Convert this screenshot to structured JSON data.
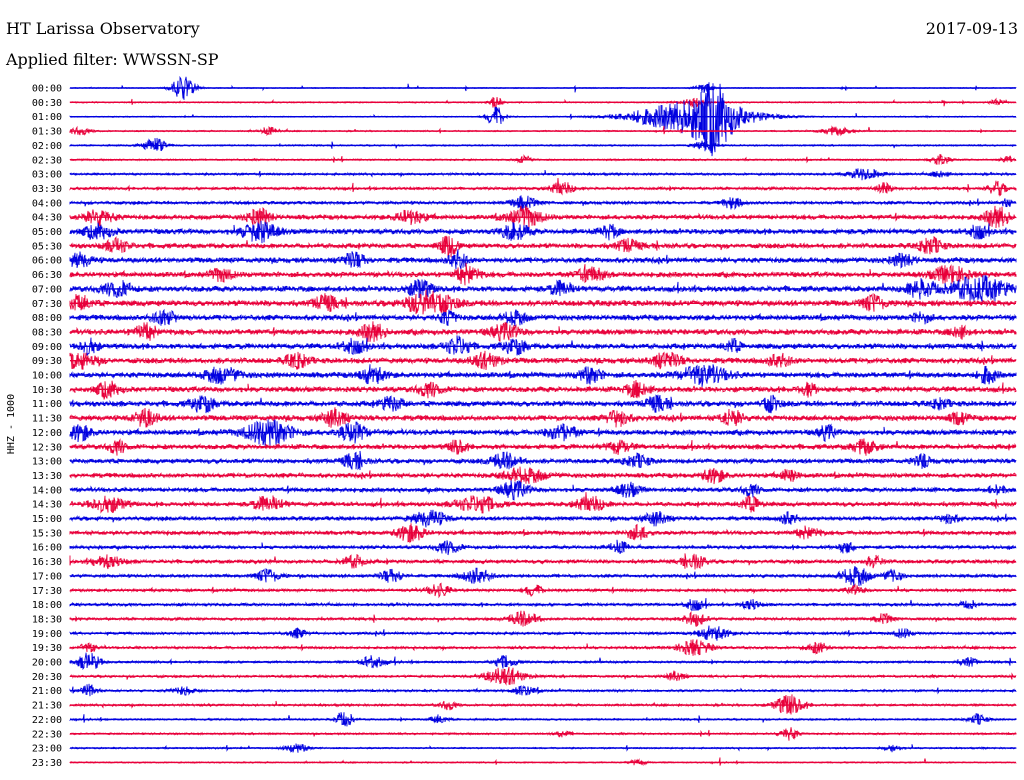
{
  "header": {
    "title": "HT Larissa Observatory",
    "filter": "Applied filter: WWSSN-SP",
    "date": "2017-09-13"
  },
  "colors": {
    "background": "#ffffff",
    "trace_even": "#0000e0",
    "trace_odd": "#e8003a",
    "text": "#000000"
  },
  "chart_data": {
    "type": "line",
    "title": "HT Larissa Observatory",
    "subtitle": "Applied filter: WWSSN-SP",
    "date": "2017-09-13",
    "ylabel": "HHZ - 1000",
    "xlabel": "",
    "grid": false,
    "rows": [
      {
        "label": "00:00",
        "color": "#0000e0",
        "noise": 0.05,
        "events": [
          [
            0.12,
            1.6,
            8
          ],
          [
            0.67,
            0.6,
            6
          ]
        ]
      },
      {
        "label": "00:30",
        "color": "#e8003a",
        "noise": 0.07,
        "events": [
          [
            0.45,
            0.9,
            4
          ],
          [
            0.66,
            0.5,
            10
          ],
          [
            0.98,
            0.4,
            5
          ]
        ]
      },
      {
        "label": "01:00",
        "color": "#0000e0",
        "noise": 0.06,
        "events": [
          [
            0.45,
            1.4,
            6
          ],
          [
            0.66,
            2.2,
            40
          ],
          [
            0.68,
            3.2,
            12
          ]
        ]
      },
      {
        "label": "01:30",
        "color": "#e8003a",
        "noise": 0.07,
        "events": [
          [
            0.01,
            0.5,
            8
          ],
          [
            0.21,
            0.5,
            6
          ],
          [
            0.81,
            0.6,
            10
          ]
        ]
      },
      {
        "label": "02:00",
        "color": "#0000e0",
        "noise": 0.08,
        "events": [
          [
            0.09,
            1.0,
            8
          ],
          [
            0.67,
            0.6,
            8
          ]
        ]
      },
      {
        "label": "02:30",
        "color": "#e8003a",
        "noise": 0.09,
        "events": [
          [
            0.48,
            0.7,
            4
          ],
          [
            0.92,
            0.8,
            6
          ],
          [
            0.99,
            0.5,
            4
          ]
        ]
      },
      {
        "label": "03:00",
        "color": "#0000e0",
        "noise": 0.12,
        "events": [
          [
            0.84,
            0.9,
            10
          ],
          [
            0.92,
            0.5,
            6
          ]
        ]
      },
      {
        "label": "03:30",
        "color": "#e8003a",
        "noise": 0.15,
        "events": [
          [
            0.52,
            0.9,
            8
          ],
          [
            0.86,
            0.7,
            6
          ],
          [
            0.98,
            0.9,
            6
          ]
        ]
      },
      {
        "label": "04:00",
        "color": "#0000e0",
        "noise": 0.18,
        "events": [
          [
            0.48,
            0.9,
            8
          ],
          [
            0.7,
            0.8,
            6
          ],
          [
            0.99,
            0.5,
            4
          ]
        ]
      },
      {
        "label": "04:30",
        "color": "#e8003a",
        "noise": 0.28,
        "events": [
          [
            0.03,
            1.0,
            10
          ],
          [
            0.2,
            1.2,
            8
          ],
          [
            0.36,
            0.9,
            10
          ],
          [
            0.48,
            1.3,
            12
          ],
          [
            0.98,
            1.4,
            8
          ]
        ]
      },
      {
        "label": "05:00",
        "color": "#0000e0",
        "noise": 0.32,
        "events": [
          [
            0.03,
            0.9,
            10
          ],
          [
            0.2,
            1.3,
            12
          ],
          [
            0.47,
            1.0,
            10
          ],
          [
            0.57,
            0.9,
            6
          ],
          [
            0.96,
            0.9,
            6
          ]
        ]
      },
      {
        "label": "05:30",
        "color": "#e8003a",
        "noise": 0.3,
        "events": [
          [
            0.05,
            0.9,
            8
          ],
          [
            0.4,
            1.4,
            6
          ],
          [
            0.59,
            0.8,
            8
          ],
          [
            0.91,
            1.0,
            8
          ]
        ]
      },
      {
        "label": "06:00",
        "color": "#0000e0",
        "noise": 0.32,
        "events": [
          [
            0.01,
            0.9,
            8
          ],
          [
            0.3,
            0.9,
            8
          ],
          [
            0.41,
            1.2,
            6
          ],
          [
            0.88,
            0.8,
            8
          ]
        ]
      },
      {
        "label": "06:30",
        "color": "#e8003a",
        "noise": 0.32,
        "events": [
          [
            0.16,
            0.8,
            8
          ],
          [
            0.42,
            1.3,
            8
          ],
          [
            0.55,
            0.9,
            10
          ],
          [
            0.93,
            1.1,
            12
          ]
        ]
      },
      {
        "label": "07:00",
        "color": "#0000e0",
        "noise": 0.35,
        "events": [
          [
            0.05,
            1.0,
            10
          ],
          [
            0.37,
            1.2,
            8
          ],
          [
            0.52,
            0.9,
            8
          ],
          [
            0.9,
            1.2,
            10
          ],
          [
            0.96,
            1.6,
            20
          ]
        ]
      },
      {
        "label": "07:30",
        "color": "#e8003a",
        "noise": 0.35,
        "events": [
          [
            0.01,
            1.0,
            8
          ],
          [
            0.27,
            1.0,
            8
          ],
          [
            0.38,
            1.6,
            16
          ],
          [
            0.85,
            1.0,
            8
          ]
        ]
      },
      {
        "label": "08:00",
        "color": "#0000e0",
        "noise": 0.33,
        "events": [
          [
            0.1,
            1.0,
            8
          ],
          [
            0.4,
            0.9,
            6
          ],
          [
            0.47,
            0.9,
            8
          ],
          [
            0.9,
            0.7,
            6
          ]
        ]
      },
      {
        "label": "08:30",
        "color": "#e8003a",
        "noise": 0.34,
        "events": [
          [
            0.08,
            1.0,
            8
          ],
          [
            0.32,
            1.2,
            8
          ],
          [
            0.46,
            1.0,
            10
          ],
          [
            0.94,
            0.8,
            6
          ]
        ]
      },
      {
        "label": "09:00",
        "color": "#0000e0",
        "noise": 0.33,
        "events": [
          [
            0.02,
            1.0,
            6
          ],
          [
            0.3,
            0.9,
            8
          ],
          [
            0.41,
            1.3,
            8
          ],
          [
            0.47,
            1.0,
            8
          ],
          [
            0.7,
            0.8,
            6
          ]
        ]
      },
      {
        "label": "09:30",
        "color": "#e8003a",
        "noise": 0.33,
        "events": [
          [
            0.01,
            1.0,
            12
          ],
          [
            0.24,
            0.9,
            8
          ],
          [
            0.44,
            1.0,
            10
          ],
          [
            0.63,
            1.0,
            10
          ],
          [
            0.75,
            0.8,
            8
          ]
        ]
      },
      {
        "label": "10:00",
        "color": "#0000e0",
        "noise": 0.33,
        "events": [
          [
            0.16,
            1.0,
            12
          ],
          [
            0.32,
            1.2,
            8
          ],
          [
            0.55,
            1.0,
            8
          ],
          [
            0.67,
            1.3,
            16
          ],
          [
            0.97,
            1.1,
            6
          ]
        ]
      },
      {
        "label": "10:30",
        "color": "#e8003a",
        "noise": 0.33,
        "events": [
          [
            0.04,
            1.0,
            8
          ],
          [
            0.38,
            0.9,
            8
          ],
          [
            0.6,
            1.0,
            8
          ],
          [
            0.78,
            0.8,
            6
          ]
        ]
      },
      {
        "label": "11:00",
        "color": "#0000e0",
        "noise": 0.33,
        "events": [
          [
            0.14,
            1.1,
            8
          ],
          [
            0.34,
            0.9,
            8
          ],
          [
            0.62,
            0.9,
            8
          ],
          [
            0.74,
            1.0,
            6
          ],
          [
            0.92,
            0.6,
            6
          ]
        ]
      },
      {
        "label": "11:30",
        "color": "#e8003a",
        "noise": 0.33,
        "events": [
          [
            0.08,
            1.1,
            8
          ],
          [
            0.28,
            1.2,
            8
          ],
          [
            0.58,
            1.0,
            8
          ],
          [
            0.7,
            1.0,
            8
          ],
          [
            0.94,
            0.8,
            6
          ]
        ]
      },
      {
        "label": "12:00",
        "color": "#0000e0",
        "noise": 0.32,
        "events": [
          [
            0.01,
            1.0,
            8
          ],
          [
            0.21,
            1.6,
            16
          ],
          [
            0.3,
            1.2,
            10
          ],
          [
            0.52,
            1.0,
            10
          ],
          [
            0.8,
            0.9,
            6
          ]
        ]
      },
      {
        "label": "12:30",
        "color": "#e8003a",
        "noise": 0.3,
        "events": [
          [
            0.05,
            0.9,
            6
          ],
          [
            0.41,
            0.9,
            6
          ],
          [
            0.58,
            0.8,
            8
          ],
          [
            0.84,
            1.0,
            8
          ]
        ]
      },
      {
        "label": "13:00",
        "color": "#0000e0",
        "noise": 0.28,
        "events": [
          [
            0.3,
            0.9,
            8
          ],
          [
            0.46,
            1.0,
            10
          ],
          [
            0.6,
            0.8,
            8
          ],
          [
            0.9,
            0.8,
            6
          ]
        ]
      },
      {
        "label": "13:30",
        "color": "#e8003a",
        "noise": 0.28,
        "events": [
          [
            0.48,
            1.0,
            14
          ],
          [
            0.68,
            0.9,
            8
          ],
          [
            0.76,
            0.8,
            6
          ]
        ]
      },
      {
        "label": "14:00",
        "color": "#0000e0",
        "noise": 0.26,
        "events": [
          [
            0.47,
            1.1,
            10
          ],
          [
            0.59,
            0.9,
            8
          ],
          [
            0.72,
            0.8,
            6
          ],
          [
            0.98,
            0.6,
            6
          ]
        ]
      },
      {
        "label": "14:30",
        "color": "#e8003a",
        "noise": 0.26,
        "events": [
          [
            0.04,
            1.0,
            12
          ],
          [
            0.21,
            1.0,
            10
          ],
          [
            0.43,
            1.1,
            14
          ],
          [
            0.55,
            1.0,
            10
          ],
          [
            0.72,
            0.9,
            8
          ]
        ]
      },
      {
        "label": "15:00",
        "color": "#0000e0",
        "noise": 0.24,
        "events": [
          [
            0.38,
            1.0,
            12
          ],
          [
            0.62,
            0.9,
            8
          ],
          [
            0.76,
            0.8,
            6
          ],
          [
            0.93,
            0.7,
            6
          ]
        ]
      },
      {
        "label": "15:30",
        "color": "#e8003a",
        "noise": 0.24,
        "events": [
          [
            0.36,
            1.1,
            10
          ],
          [
            0.6,
            0.9,
            8
          ],
          [
            0.78,
            0.8,
            8
          ]
        ]
      },
      {
        "label": "16:00",
        "color": "#0000e0",
        "noise": 0.2,
        "events": [
          [
            0.4,
            0.9,
            8
          ],
          [
            0.58,
            0.8,
            6
          ],
          [
            0.82,
            0.7,
            6
          ]
        ]
      },
      {
        "label": "16:30",
        "color": "#e8003a",
        "noise": 0.22,
        "events": [
          [
            0.04,
            0.8,
            10
          ],
          [
            0.3,
            0.8,
            8
          ],
          [
            0.66,
            0.9,
            8
          ],
          [
            0.85,
            0.7,
            6
          ]
        ]
      },
      {
        "label": "17:00",
        "color": "#0000e0",
        "noise": 0.18,
        "events": [
          [
            0.21,
            0.9,
            8
          ],
          [
            0.34,
            0.8,
            8
          ],
          [
            0.43,
            1.0,
            10
          ],
          [
            0.83,
            1.3,
            10
          ],
          [
            0.87,
            0.8,
            6
          ]
        ]
      },
      {
        "label": "17:30",
        "color": "#e8003a",
        "noise": 0.16,
        "events": [
          [
            0.39,
            0.8,
            8
          ],
          [
            0.49,
            0.8,
            6
          ],
          [
            0.83,
            0.6,
            6
          ]
        ]
      },
      {
        "label": "18:00",
        "color": "#0000e0",
        "noise": 0.16,
        "events": [
          [
            0.66,
            0.8,
            6
          ],
          [
            0.72,
            0.7,
            6
          ],
          [
            0.95,
            0.6,
            6
          ]
        ]
      },
      {
        "label": "18:30",
        "color": "#e8003a",
        "noise": 0.15,
        "events": [
          [
            0.48,
            1.0,
            10
          ],
          [
            0.66,
            0.9,
            8
          ],
          [
            0.86,
            0.7,
            6
          ]
        ]
      },
      {
        "label": "19:00",
        "color": "#0000e0",
        "noise": 0.14,
        "events": [
          [
            0.24,
            0.6,
            6
          ],
          [
            0.68,
            1.0,
            10
          ],
          [
            0.88,
            0.6,
            6
          ]
        ]
      },
      {
        "label": "19:30",
        "color": "#e8003a",
        "noise": 0.14,
        "events": [
          [
            0.02,
            0.6,
            6
          ],
          [
            0.66,
            1.0,
            12
          ],
          [
            0.79,
            0.7,
            8
          ]
        ]
      },
      {
        "label": "20:00",
        "color": "#0000e0",
        "noise": 0.12,
        "events": [
          [
            0.02,
            1.2,
            8
          ],
          [
            0.32,
            0.8,
            8
          ],
          [
            0.46,
            0.8,
            8
          ],
          [
            0.95,
            0.6,
            6
          ]
        ]
      },
      {
        "label": "20:30",
        "color": "#e8003a",
        "noise": 0.13,
        "events": [
          [
            0.46,
            1.2,
            14
          ],
          [
            0.64,
            0.7,
            6
          ]
        ]
      },
      {
        "label": "21:00",
        "color": "#0000e0",
        "noise": 0.12,
        "events": [
          [
            0.02,
            0.8,
            6
          ],
          [
            0.12,
            0.5,
            8
          ],
          [
            0.48,
            0.6,
            8
          ]
        ]
      },
      {
        "label": "21:30",
        "color": "#e8003a",
        "noise": 0.12,
        "events": [
          [
            0.76,
            1.4,
            10
          ],
          [
            0.4,
            0.6,
            6
          ]
        ]
      },
      {
        "label": "22:00",
        "color": "#0000e0",
        "noise": 0.1,
        "events": [
          [
            0.29,
            1.2,
            6
          ],
          [
            0.39,
            0.6,
            6
          ],
          [
            0.96,
            0.7,
            6
          ]
        ]
      },
      {
        "label": "22:30",
        "color": "#e8003a",
        "noise": 0.1,
        "events": [
          [
            0.76,
            0.9,
            6
          ],
          [
            0.52,
            0.4,
            6
          ]
        ]
      },
      {
        "label": "23:00",
        "color": "#0000e0",
        "noise": 0.08,
        "events": [
          [
            0.24,
            0.6,
            8
          ],
          [
            0.87,
            0.5,
            6
          ]
        ]
      },
      {
        "label": "23:30",
        "color": "#e8003a",
        "noise": 0.07,
        "events": [
          [
            0.6,
            0.4,
            6
          ]
        ]
      }
    ]
  }
}
